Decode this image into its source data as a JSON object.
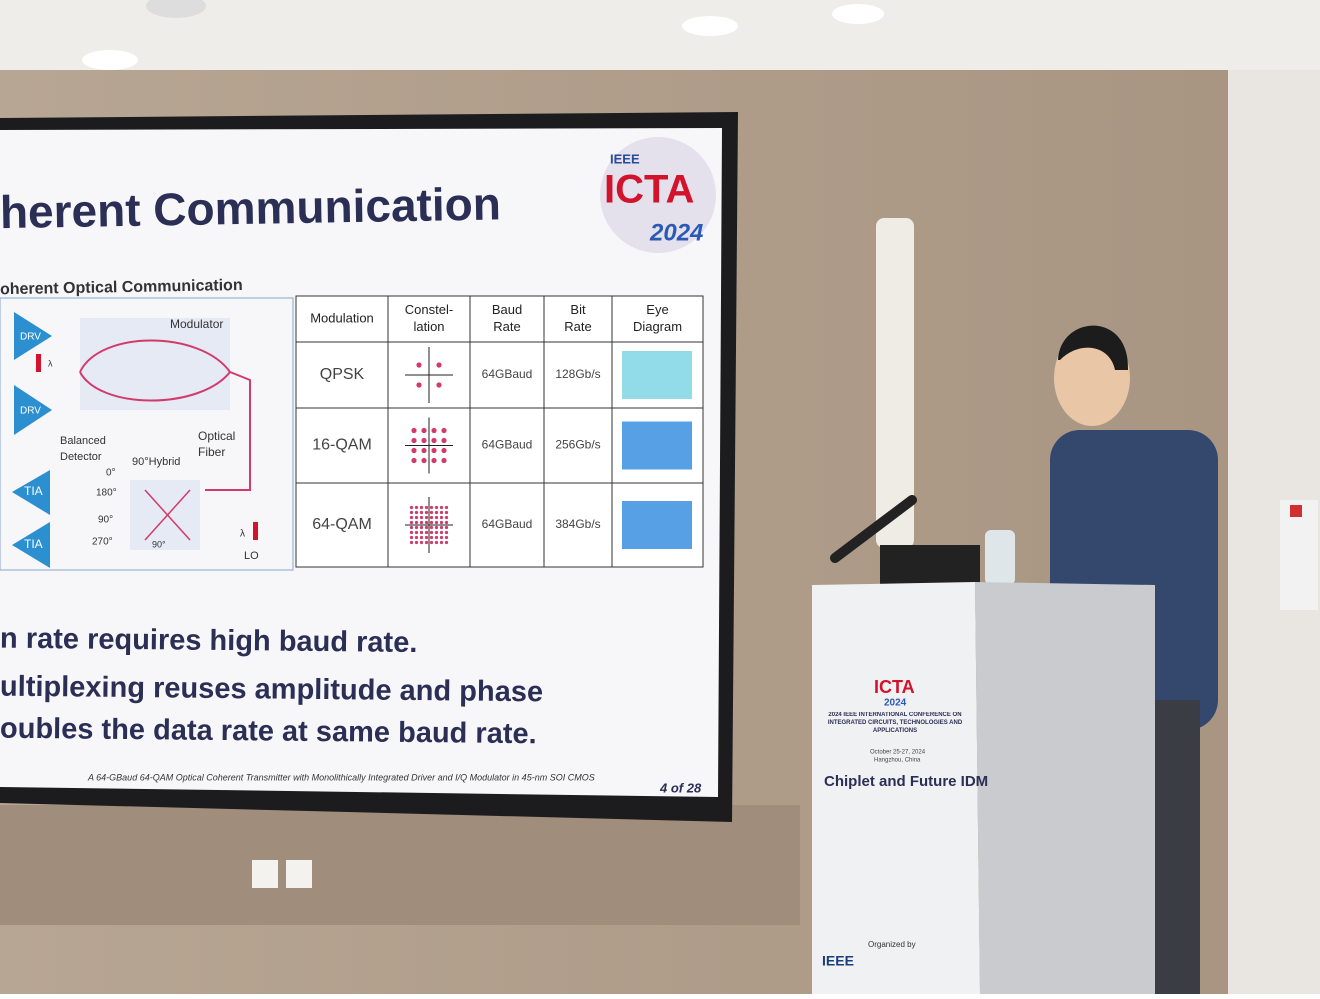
{
  "slide": {
    "logo": {
      "org": "IEEE",
      "name": "ICTA",
      "year": "2024"
    },
    "title": "herent Communication",
    "subtitle": "oherent Optical Communication",
    "diagram": {
      "labels": [
        "DRV",
        "DRV",
        "Modulator",
        "λ",
        "Balanced Detector",
        "Optical Fiber",
        "90°Hybrid",
        "TIA",
        "TIA",
        "0°",
        "180°",
        "90°",
        "270°",
        "90°",
        "LO",
        "λ"
      ]
    },
    "table": {
      "header": [
        "Modulation",
        "Constel-lation",
        "Baud Rate",
        "Bit Rate",
        "Eye Diagram"
      ],
      "rows": [
        [
          "QPSK",
          "64GBaud",
          "128Gb/s"
        ],
        [
          "16-QAM",
          "64GBaud",
          "256Gb/s"
        ],
        [
          "64-QAM",
          "64GBaud",
          "384Gb/s"
        ]
      ]
    },
    "bullets": [
      "n rate requires high baud rate.",
      "ultiplexing reuses amplitude and phase",
      "oubles the data rate at same baud rate."
    ],
    "footer": "A 64-GBaud 64-QAM Optical Coherent Transmitter with Monolithically Integrated Driver and I/Q Modulator in 45-nm SOI CMOS",
    "page": "4 of 28"
  },
  "podium": {
    "logo": "ICTA",
    "year": "2024",
    "conference": "2024 IEEE INTERNATIONAL CONFERENCE ON INTEGRATED CIRCUITS, TECHNOLOGIES AND APPLICATIONS",
    "date": "October 25-27, 2024",
    "place": "Hangzhou, China",
    "theme": "Chiplet and Future IDM",
    "organized": "Organized by",
    "org": "IEEE"
  }
}
